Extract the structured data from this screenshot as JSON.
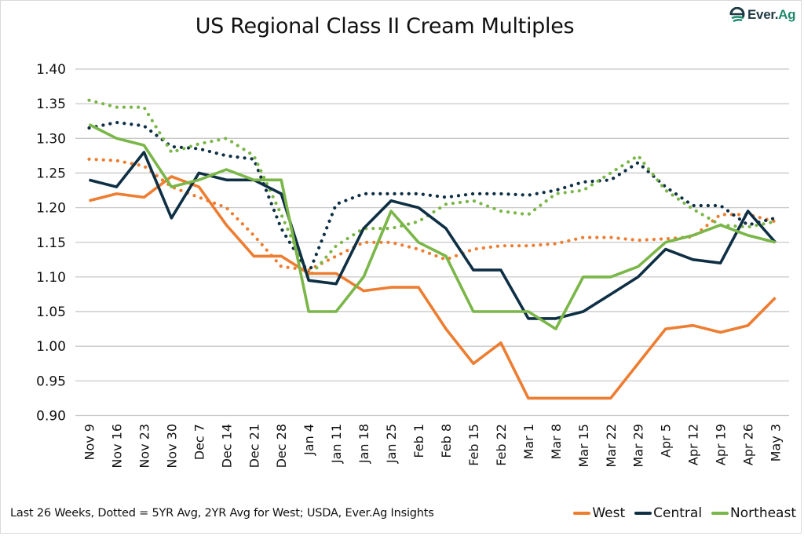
{
  "header": {
    "title": "US Regional Class II Cream Multiples",
    "logo_text_a": "Ever.",
    "logo_text_b": "Ag"
  },
  "footer": {
    "note": "Last 26 Weeks, Dotted = 5YR Avg, 2YR Avg for West; USDA, Ever.Ag Insights"
  },
  "colors": {
    "west": "#ed7d31",
    "central": "#0e2f44",
    "northeast": "#7ab648",
    "grid": "#c8c8c8",
    "logo_dark": "#1f3b45",
    "logo_green": "#1f8a6d"
  },
  "chart_data": {
    "type": "line",
    "title": "US Regional Class II Cream Multiples",
    "xlabel": "",
    "ylabel": "",
    "ylim": [
      0.9,
      1.4
    ],
    "yticks": [
      "1.40",
      "1.35",
      "1.30",
      "1.25",
      "1.20",
      "1.15",
      "1.10",
      "1.05",
      "1.00",
      "0.95",
      "0.90"
    ],
    "ytick_values": [
      1.4,
      1.35,
      1.3,
      1.25,
      1.2,
      1.15,
      1.1,
      1.05,
      1.0,
      0.95,
      0.9
    ],
    "grid": true,
    "legend_position": "bottom-right",
    "categories": [
      "Nov 9",
      "Nov 16",
      "Nov 23",
      "Nov 30",
      "Dec 7",
      "Dec 14",
      "Dec 21",
      "Dec 28",
      "Jan 4",
      "Jan 11",
      "Jan 18",
      "Jan 25",
      "Feb 1",
      "Feb 8",
      "Feb 15",
      "Feb 22",
      "Mar 1",
      "Mar 8",
      "Mar 15",
      "Mar 22",
      "Mar 29",
      "Apr 5",
      "Apr 12",
      "Apr 19",
      "Apr 26",
      "May 3"
    ],
    "series": [
      {
        "name": "West",
        "key": "west",
        "style": "solid",
        "legend": true,
        "values": [
          1.21,
          1.22,
          1.215,
          1.245,
          1.23,
          1.175,
          1.13,
          1.13,
          1.105,
          1.105,
          1.08,
          1.085,
          1.085,
          1.025,
          0.975,
          1.005,
          0.925,
          0.925,
          0.925,
          0.925,
          0.975,
          1.025,
          1.03,
          1.02,
          1.03,
          1.07
        ]
      },
      {
        "name": "Central",
        "key": "central",
        "style": "solid",
        "legend": true,
        "values": [
          1.24,
          1.23,
          1.28,
          1.185,
          1.25,
          1.24,
          1.24,
          1.22,
          1.095,
          1.09,
          1.17,
          1.21,
          1.2,
          1.17,
          1.11,
          1.11,
          1.04,
          1.04,
          1.05,
          1.075,
          1.1,
          1.14,
          1.125,
          1.12,
          1.195,
          1.15
        ]
      },
      {
        "name": "Northeast",
        "key": "northeast",
        "style": "solid",
        "legend": true,
        "values": [
          1.32,
          1.3,
          1.29,
          1.23,
          1.24,
          1.255,
          1.24,
          1.24,
          1.05,
          1.05,
          1.1,
          1.195,
          1.15,
          1.13,
          1.05,
          1.05,
          1.05,
          1.025,
          1.1,
          1.1,
          1.115,
          1.15,
          1.16,
          1.175,
          1.16,
          1.15
        ]
      },
      {
        "name": "West 2YR Avg",
        "key": "west",
        "style": "dotted",
        "legend": false,
        "values": [
          1.27,
          1.268,
          1.26,
          1.23,
          1.215,
          1.2,
          1.16,
          1.115,
          1.11,
          1.13,
          1.15,
          1.15,
          1.14,
          1.125,
          1.14,
          1.145,
          1.145,
          1.148,
          1.157,
          1.157,
          1.153,
          1.155,
          1.158,
          1.19,
          1.19,
          1.18
        ]
      },
      {
        "name": "Central 5YR Avg",
        "key": "central",
        "style": "dotted",
        "legend": false,
        "values": [
          1.315,
          1.323,
          1.318,
          1.288,
          1.285,
          1.275,
          1.27,
          1.17,
          1.105,
          1.205,
          1.22,
          1.22,
          1.22,
          1.215,
          1.22,
          1.22,
          1.218,
          1.225,
          1.237,
          1.24,
          1.265,
          1.23,
          1.203,
          1.203,
          1.175,
          1.185
        ]
      },
      {
        "name": "Northeast 5YR Avg",
        "key": "northeast",
        "style": "dotted",
        "legend": false,
        "values": [
          1.355,
          1.345,
          1.345,
          1.28,
          1.292,
          1.3,
          1.275,
          1.19,
          1.1,
          1.145,
          1.17,
          1.17,
          1.18,
          1.205,
          1.21,
          1.195,
          1.19,
          1.22,
          1.225,
          1.25,
          1.275,
          1.225,
          1.198,
          1.175,
          1.172,
          1.18
        ]
      }
    ]
  },
  "legend": {
    "items": [
      {
        "label": "West",
        "key": "west"
      },
      {
        "label": "Central",
        "key": "central"
      },
      {
        "label": "Northeast",
        "key": "northeast"
      }
    ]
  }
}
